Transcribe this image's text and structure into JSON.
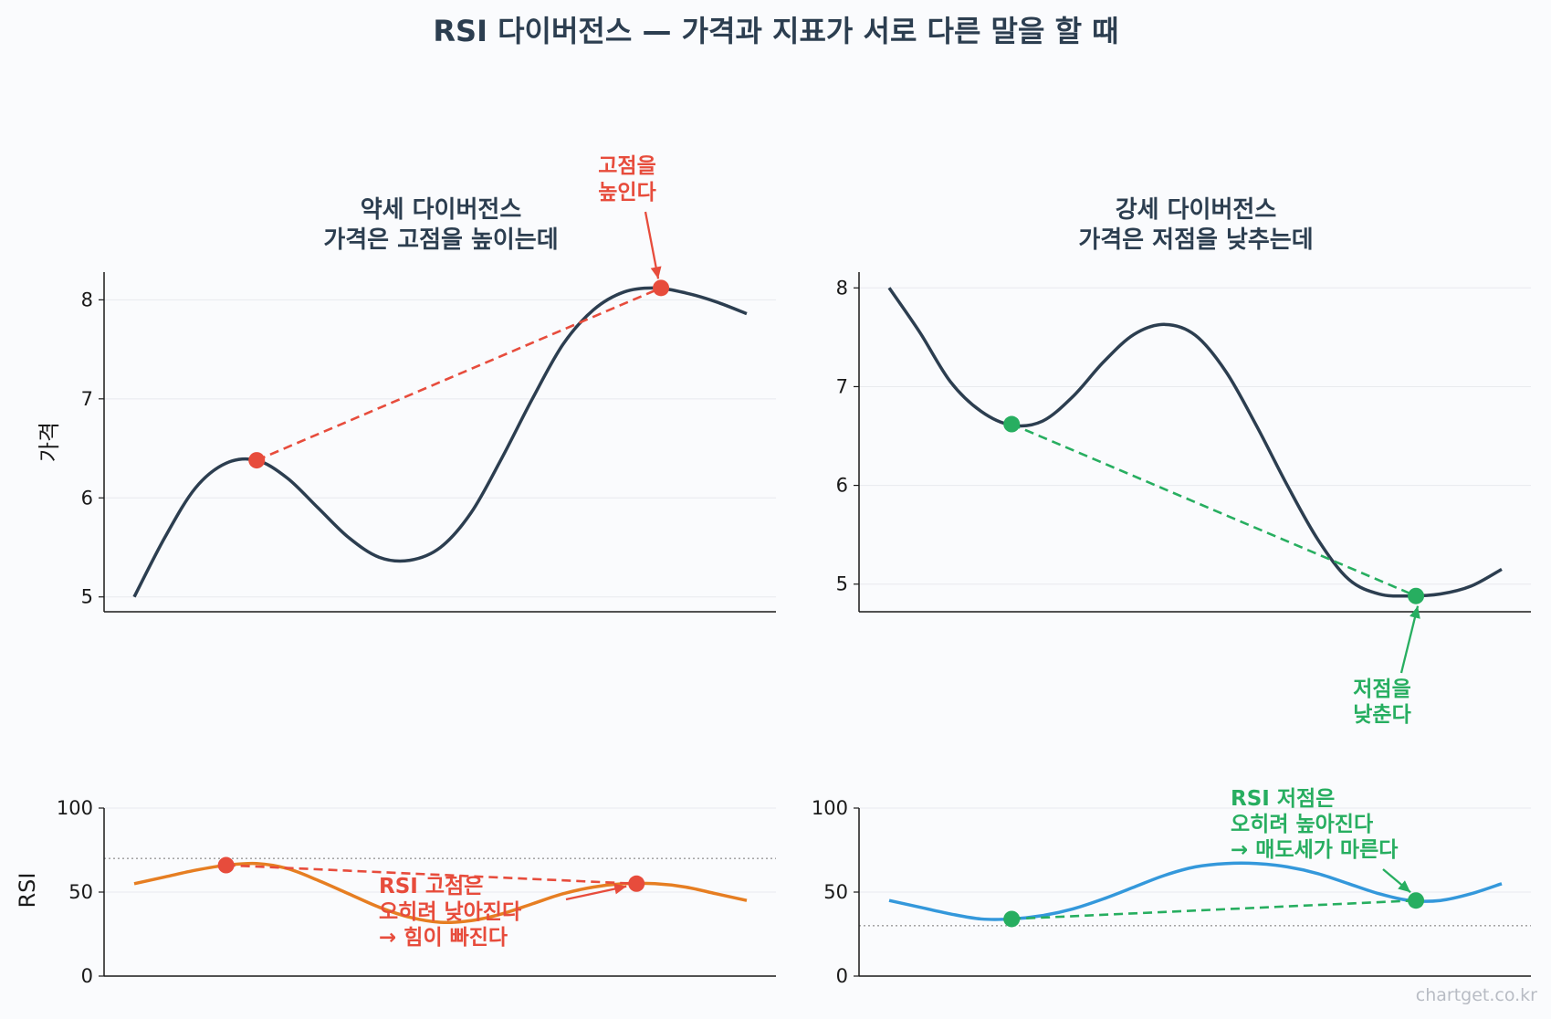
{
  "title": "RSI 다이버전스 — 가격과 지표가 서로 다른 말을 할 때",
  "watermark": "chartget.co.kr",
  "colors": {
    "price_line": "#2c3e50",
    "bearish": "#e74c3c",
    "bullish": "#27ae60",
    "rsi_bearish": "#e67e22",
    "rsi_bullish": "#3498db",
    "grid": "#e8eaee",
    "level_line": "#9a9a9a"
  },
  "chart_data": [
    {
      "id": "bearish-price",
      "type": "line",
      "title_lines": [
        "약세 다이버전스",
        "가격은 고점을 높이는데"
      ],
      "ylabel": "가격",
      "ylim": [
        4.85,
        8.28
      ],
      "yticks": [
        5,
        6,
        7,
        8
      ],
      "x": [
        0,
        0.05,
        0.1,
        0.15,
        0.2,
        0.25,
        0.3,
        0.35,
        0.4,
        0.45,
        0.5,
        0.55,
        0.6,
        0.65,
        0.7,
        0.75,
        0.8,
        0.85,
        0.9,
        0.95,
        1
      ],
      "values": [
        5.0,
        5.6,
        6.1,
        6.35,
        6.38,
        6.2,
        5.9,
        5.6,
        5.4,
        5.37,
        5.5,
        5.85,
        6.4,
        7.0,
        7.55,
        7.9,
        8.08,
        8.12,
        8.07,
        7.98,
        7.86
      ],
      "marker_points": [
        {
          "x": 0.2,
          "y": 6.38
        },
        {
          "x": 0.86,
          "y": 8.12
        }
      ],
      "annotation": {
        "lines": [
          "고점을",
          "높인다"
        ]
      }
    },
    {
      "id": "bullish-price",
      "type": "line",
      "title_lines": [
        "강세 다이버전스",
        "가격은 저점을 낮추는데"
      ],
      "ylabel": "",
      "ylim": [
        4.72,
        8.16
      ],
      "yticks": [
        5,
        6,
        7,
        8
      ],
      "x": [
        0,
        0.05,
        0.1,
        0.15,
        0.2,
        0.25,
        0.3,
        0.35,
        0.4,
        0.45,
        0.5,
        0.55,
        0.6,
        0.65,
        0.7,
        0.75,
        0.8,
        0.85,
        0.9,
        0.95,
        1
      ],
      "values": [
        8.0,
        7.55,
        7.05,
        6.75,
        6.61,
        6.65,
        6.9,
        7.25,
        7.53,
        7.63,
        7.52,
        7.15,
        6.6,
        6.0,
        5.45,
        5.05,
        4.9,
        4.88,
        4.9,
        4.98,
        5.15
      ],
      "marker_points": [
        {
          "x": 0.2,
          "y": 6.62
        },
        {
          "x": 0.86,
          "y": 4.88
        }
      ],
      "annotation": {
        "lines": [
          "저점을",
          "낮춘다"
        ]
      }
    },
    {
      "id": "bearish-rsi",
      "type": "line",
      "title_lines": [],
      "ylabel": "RSI",
      "ylim": [
        0,
        100
      ],
      "yticks": [
        0,
        50,
        100
      ],
      "level": 70,
      "x": [
        0,
        0.05,
        0.1,
        0.15,
        0.2,
        0.25,
        0.3,
        0.35,
        0.4,
        0.45,
        0.5,
        0.55,
        0.6,
        0.65,
        0.7,
        0.75,
        0.8,
        0.85,
        0.9,
        0.95,
        1
      ],
      "values": [
        55,
        59,
        63,
        66,
        67,
        64,
        57,
        49,
        41,
        35,
        32,
        33,
        37,
        43,
        49,
        53,
        55,
        55,
        53,
        49,
        45
      ],
      "marker_points": [
        {
          "x": 0.15,
          "y": 66
        },
        {
          "x": 0.82,
          "y": 55
        }
      ],
      "annotation": {
        "lines": [
          "RSI 고점은",
          "오히려 낮아진다",
          "→ 힘이 빠진다"
        ]
      }
    },
    {
      "id": "bullish-rsi",
      "type": "line",
      "title_lines": [],
      "ylabel": "",
      "ylim": [
        0,
        100
      ],
      "yticks": [
        0,
        50,
        100
      ],
      "level": 30,
      "x": [
        0,
        0.05,
        0.1,
        0.15,
        0.2,
        0.25,
        0.3,
        0.35,
        0.4,
        0.45,
        0.5,
        0.55,
        0.6,
        0.65,
        0.7,
        0.75,
        0.8,
        0.85,
        0.9,
        0.95,
        1
      ],
      "values": [
        45,
        41,
        37,
        34,
        34,
        36,
        40,
        46,
        53,
        60,
        65,
        67,
        67,
        65,
        61,
        55,
        49,
        45,
        45,
        49,
        55
      ],
      "marker_points": [
        {
          "x": 0.2,
          "y": 34
        },
        {
          "x": 0.86,
          "y": 45
        }
      ],
      "annotation": {
        "lines": [
          "RSI 저점은",
          "오히려 높아진다",
          "→ 매도세가 마른다"
        ]
      }
    }
  ]
}
